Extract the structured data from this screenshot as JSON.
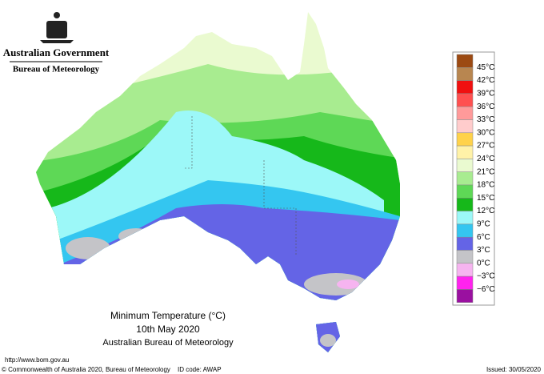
{
  "header": {
    "government": "Australian Government",
    "agency": "Bureau of Meteorology"
  },
  "legend": {
    "labels": [
      "45°C",
      "42°C",
      "39°C",
      "36°C",
      "33°C",
      "30°C",
      "27°C",
      "24°C",
      "21°C",
      "18°C",
      "15°C",
      "12°C",
      "9°C",
      "6°C",
      "3°C",
      "0°C",
      "−3°C",
      "−6°C"
    ],
    "colors": [
      "#9c4a12",
      "#b88650",
      "#f01010",
      "#ff5050",
      "#ff9a9a",
      "#ffcccc",
      "#ffd24a",
      "#fff2a8",
      "#eafad0",
      "#a8ec90",
      "#5ed856",
      "#16b81a",
      "#9cf8f8",
      "#34c6f0",
      "#6464e6",
      "#c4c4c8",
      "#f6b4f0",
      "#ff22ee",
      "#9a10a0"
    ]
  },
  "caption": {
    "title": "Minimum Temperature (°C)",
    "date": "10th May 2020",
    "source": "Australian Bureau of Meteorology"
  },
  "footer": {
    "url": "http://www.bom.gov.au",
    "copyright": "© Commonwealth of Australia 2020, Bureau of Meteorology",
    "id_code": "ID code: AWAP",
    "issued": "Issued: 30/05/2020"
  }
}
